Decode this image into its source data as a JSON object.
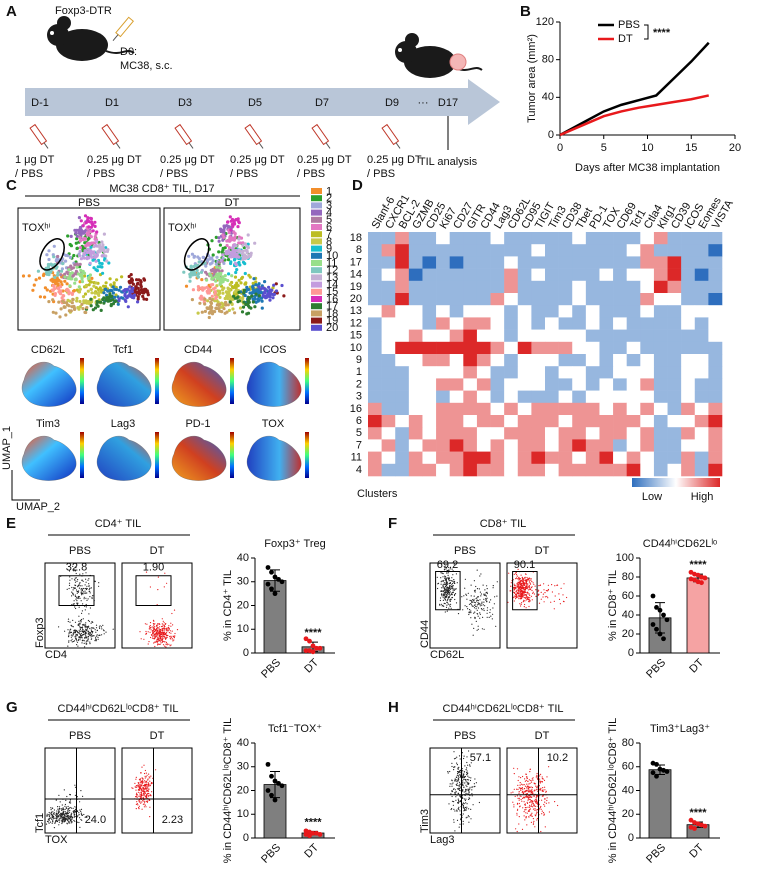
{
  "panel_labels": [
    "A",
    "B",
    "C",
    "D",
    "E",
    "F",
    "G",
    "H"
  ],
  "schedule": {
    "strain": "Foxp3-DTR",
    "d0": "D0:",
    "d0_detail": "MC38, s.c.",
    "days": [
      "D-1",
      "D1",
      "D3",
      "D5",
      "D7",
      "D9",
      "···",
      "D17"
    ],
    "doses": [
      {
        "amount": "1 μg DT",
        "control": "/ PBS"
      },
      {
        "amount": "0.25 μg DT",
        "control": "/ PBS"
      },
      {
        "amount": "0.25 μg DT",
        "control": "/ PBS"
      },
      {
        "amount": "0.25 μg DT",
        "control": "/ PBS"
      },
      {
        "amount": "0.25 μg DT",
        "control": "/ PBS"
      },
      {
        "amount": "0.25 μg DT",
        "control": "/ PBS"
      }
    ],
    "endpoint": "TIL analysis"
  },
  "umap": {
    "title": "MC38 CD8⁺ TIL, D17",
    "groups": [
      "PBS",
      "DT"
    ],
    "gate_label": "TOXʰⁱ",
    "clusters": [
      {
        "label": "1",
        "color": "#f28e2b"
      },
      {
        "label": "2",
        "color": "#2ca02c"
      },
      {
        "label": "3",
        "color": "#9fa8da"
      },
      {
        "label": "4",
        "color": "#9467bd"
      },
      {
        "label": "5",
        "color": "#b07aa1"
      },
      {
        "label": "6",
        "color": "#e377c2"
      },
      {
        "label": "7",
        "color": "#bcbd22"
      },
      {
        "label": "8",
        "color": "#c7c94a"
      },
      {
        "label": "9",
        "color": "#17becf"
      },
      {
        "label": "10",
        "color": "#1f77b4"
      },
      {
        "label": "11",
        "color": "#98df8a"
      },
      {
        "label": "12",
        "color": "#7fc8c0"
      },
      {
        "label": "13",
        "color": "#c5b0d5"
      },
      {
        "label": "14",
        "color": "#c49cde"
      },
      {
        "label": "15",
        "color": "#ff9896"
      },
      {
        "label": "16",
        "color": "#d62fb8"
      },
      {
        "label": "17",
        "color": "#2e7d32"
      },
      {
        "label": "18",
        "color": "#c8a064"
      },
      {
        "label": "19",
        "color": "#8b1a1a"
      },
      {
        "label": "20",
        "color": "#5a4fcf"
      }
    ],
    "markers": [
      "CD62L",
      "Tcf1",
      "CD44",
      "ICOS",
      "Tim3",
      "Lag3",
      "PD-1",
      "TOX"
    ],
    "axes": [
      "UMAP_1",
      "UMAP_2"
    ]
  },
  "flow": [
    {
      "title": "CD4⁺ TIL",
      "groups": [
        "PBS",
        "DT"
      ],
      "gates": [
        "32.8",
        "1.90"
      ],
      "y_axis": "Foxp3",
      "x_axis": "CD4"
    },
    {
      "title": "CD8⁺ TIL",
      "groups": [
        "PBS",
        "DT"
      ],
      "gates": [
        "69.2",
        "90.1"
      ],
      "y_axis": "CD44",
      "x_axis": "CD62L"
    },
    {
      "title": "CD44ʰⁱCD62LˡᵒCD8⁺ TIL",
      "groups": [
        "PBS",
        "DT"
      ],
      "gates": [
        "24.0",
        "2.23"
      ],
      "y_axis": "Tcf1",
      "x_axis": "TOX"
    },
    {
      "title": "CD44ʰⁱCD62LˡᵒCD8⁺ TIL",
      "groups": [
        "PBS",
        "DT"
      ],
      "gates": [
        "57.1",
        "10.2"
      ],
      "y_axis": "Tim3",
      "x_axis": "Lag3"
    }
  ],
  "chart_data": [
    {
      "type": "line",
      "xlabel": "Days after MC38 implantation",
      "ylabel": "Tumor area (mm²)",
      "x": [
        0,
        3,
        5,
        7,
        9,
        11,
        13,
        15,
        17
      ],
      "series": [
        {
          "name": "PBS",
          "color": "#000000",
          "values": [
            0,
            15,
            25,
            32,
            37,
            42,
            60,
            78,
            98
          ]
        },
        {
          "name": "DT",
          "color": "#e8191c",
          "values": [
            0,
            12,
            20,
            25,
            29,
            32,
            35,
            38,
            42
          ]
        }
      ],
      "xlim": [
        0,
        20
      ],
      "xticks": [
        0,
        5,
        10,
        15,
        20
      ],
      "ylim": [
        0,
        120
      ],
      "yticks": [
        0,
        40,
        80,
        120
      ],
      "significance": "****"
    },
    {
      "type": "heatmap",
      "ylabel": "Clusters",
      "low": "Low",
      "high": "High",
      "zlim": [
        -2,
        2
      ],
      "columns": [
        "Slanf-6",
        "CXCR1",
        "BCL-2",
        "GZMB",
        "CD25",
        "Ki67",
        "CD27",
        "GITR",
        "CD44",
        "Lag3",
        "CD62L",
        "CD95",
        "TIGIT",
        "Tim3",
        "CD38",
        "Tbet",
        "PD-1",
        "TOX",
        "CD69",
        "Tcf1",
        "Ctla4",
        "Klrg1",
        "CD39",
        "ICOS",
        "Eomes",
        "VISTA"
      ],
      "rows": [
        "18",
        "8",
        "17",
        "14",
        "19",
        "20",
        "13",
        "12",
        "15",
        "10",
        "9",
        "1",
        "2",
        "3",
        "16",
        "6",
        "5",
        "7",
        "11",
        "4"
      ],
      "values": [
        [
          -1,
          -1,
          1,
          -1,
          -1,
          0,
          -1,
          -1,
          -1,
          0,
          -1,
          -1,
          -1,
          -1,
          -1,
          0,
          -1,
          -1,
          -1,
          -1,
          0,
          1,
          -1,
          -1,
          -1,
          -1
        ],
        [
          -1,
          1,
          2,
          -1,
          -1,
          -1,
          -1,
          -1,
          -1,
          -1,
          -1,
          -1,
          0,
          -1,
          -1,
          -1,
          -1,
          -1,
          -1,
          0,
          1,
          -1,
          -1,
          -1,
          -1,
          -2
        ],
        [
          -1,
          -1,
          2,
          -1,
          -2,
          -1,
          -2,
          -1,
          -1,
          -1,
          0,
          -1,
          -1,
          -1,
          -1,
          -1,
          -1,
          -1,
          -1,
          -1,
          1,
          1,
          2,
          -1,
          -1,
          -1
        ],
        [
          -1,
          0,
          1,
          -2,
          -1,
          -1,
          -1,
          -1,
          -1,
          -1,
          1,
          -1,
          0,
          -1,
          -1,
          -1,
          -1,
          0,
          -1,
          0,
          0,
          1,
          2,
          -1,
          -2,
          -1
        ],
        [
          -1,
          -1,
          1,
          -1,
          -1,
          -1,
          -1,
          -1,
          -1,
          -1,
          1,
          -1,
          -1,
          -1,
          -1,
          0,
          -1,
          -1,
          -1,
          -1,
          0,
          2,
          1,
          -1,
          -1,
          -1
        ],
        [
          -1,
          -1,
          2,
          -1,
          -1,
          -1,
          -1,
          -1,
          -1,
          1,
          0,
          -1,
          -1,
          -1,
          -1,
          0,
          -1,
          -1,
          -1,
          -1,
          1,
          0,
          0,
          -1,
          -1,
          -2
        ],
        [
          0,
          1,
          0,
          0,
          -1,
          0,
          -1,
          0,
          0,
          0,
          -1,
          0,
          -1,
          -1,
          0,
          -1,
          0,
          -1,
          -1,
          -1,
          0,
          -1,
          -1,
          0,
          0,
          0
        ],
        [
          -1,
          0,
          0,
          0,
          -1,
          1,
          0,
          1,
          1,
          0,
          -1,
          0,
          -1,
          0,
          -1,
          -1,
          0,
          -1,
          0,
          -1,
          -1,
          -1,
          -1,
          0,
          -1,
          0
        ],
        [
          -1,
          0,
          0,
          1,
          0,
          0,
          1,
          2,
          0,
          0,
          -1,
          0,
          0,
          0,
          0,
          0,
          -1,
          -1,
          -1,
          -1,
          -1,
          -1,
          -1,
          -1,
          -1,
          0
        ],
        [
          -1,
          0,
          2,
          2,
          2,
          2,
          2,
          2,
          2,
          1,
          0,
          2,
          1,
          1,
          1,
          0,
          0,
          -1,
          -1,
          0,
          -1,
          -1,
          -1,
          -1,
          -1,
          -1
        ],
        [
          -1,
          -1,
          0,
          0,
          1,
          1,
          0,
          2,
          1,
          0,
          -1,
          0,
          0,
          0,
          -1,
          -1,
          0,
          -1,
          0,
          -1,
          0,
          -1,
          -1,
          0,
          0,
          -1
        ],
        [
          -1,
          -1,
          -1,
          0,
          0,
          0,
          0,
          1,
          0,
          -1,
          -1,
          0,
          0,
          -1,
          0,
          0,
          -1,
          -1,
          0,
          0,
          0,
          -1,
          -1,
          0,
          0,
          -1
        ],
        [
          -1,
          -1,
          -1,
          0,
          0,
          1,
          1,
          0,
          1,
          -1,
          0,
          0,
          0,
          -1,
          -1,
          0,
          -1,
          0,
          -1,
          0,
          1,
          -1,
          -1,
          0,
          -1,
          -1
        ],
        [
          -1,
          -1,
          -1,
          0,
          0,
          -1,
          0,
          1,
          0,
          -1,
          0,
          -1,
          -1,
          -1,
          0,
          -1,
          0,
          0,
          0,
          0,
          0,
          -1,
          -1,
          0,
          -1,
          -1
        ],
        [
          1,
          -1,
          -1,
          0,
          0,
          1,
          1,
          1,
          1,
          0,
          1,
          0,
          1,
          1,
          1,
          1,
          1,
          0,
          1,
          0,
          1,
          0,
          -1,
          1,
          0,
          1
        ],
        [
          2,
          1,
          0,
          1,
          0,
          1,
          1,
          0,
          1,
          1,
          0,
          1,
          1,
          1,
          0,
          1,
          1,
          1,
          1,
          1,
          0,
          -1,
          0,
          0,
          1,
          2
        ],
        [
          1,
          0,
          -1,
          1,
          0,
          1,
          1,
          1,
          0,
          0,
          1,
          1,
          1,
          0,
          1,
          1,
          0,
          1,
          1,
          0,
          1,
          -1,
          -1,
          1,
          0,
          1
        ],
        [
          0,
          1,
          -1,
          0,
          1,
          1,
          2,
          1,
          0,
          1,
          0,
          1,
          1,
          0,
          1,
          2,
          1,
          1,
          -1,
          0,
          1,
          -1,
          -1,
          0,
          0,
          1
        ],
        [
          1,
          0,
          -1,
          1,
          0,
          1,
          1,
          2,
          2,
          1,
          0,
          1,
          2,
          1,
          1,
          0,
          1,
          2,
          0,
          1,
          0,
          -1,
          -1,
          1,
          -1,
          1
        ],
        [
          1,
          -1,
          -1,
          1,
          1,
          0,
          1,
          2,
          1,
          1,
          0,
          1,
          1,
          0,
          1,
          1,
          1,
          1,
          1,
          2,
          0,
          -1,
          0,
          1,
          -1,
          2
        ]
      ]
    },
    {
      "type": "bar",
      "title": "Foxp3⁺ Treg",
      "ylabel": "% in CD4⁺ TIL",
      "categories": [
        "PBS",
        "DT"
      ],
      "values": [
        30.5,
        2.6
      ],
      "errors": [
        4.5,
        2
      ],
      "points": [
        [
          36,
          34,
          32,
          31,
          30,
          29,
          27,
          25
        ],
        [
          6,
          5,
          3,
          2,
          2,
          1,
          1,
          0.5
        ]
      ],
      "colors": [
        "#7f7f7f",
        "#7f7f7f"
      ],
      "point_colors": [
        "#000000",
        "#e8191c"
      ],
      "ylim": [
        0,
        40
      ],
      "yticks": [
        0,
        10,
        20,
        30,
        40
      ],
      "significance": "****"
    },
    {
      "type": "bar",
      "title": "CD44ʰⁱCD62Lˡᵒ",
      "ylabel": "% in CD8⁺ TIL",
      "categories": [
        "PBS",
        "DT"
      ],
      "values": [
        37,
        79
      ],
      "errors": [
        16,
        4
      ],
      "points": [
        [
          60,
          48,
          45,
          40,
          35,
          30,
          25,
          20,
          15
        ],
        [
          85,
          83,
          82,
          80,
          79,
          78,
          77,
          75,
          74
        ]
      ],
      "colors": [
        "#7f7f7f",
        "#f5a3a3"
      ],
      "point_colors": [
        "#000000",
        "#e8191c"
      ],
      "ylim": [
        0,
        100
      ],
      "yticks": [
        0,
        20,
        40,
        60,
        80,
        100
      ],
      "significance": "****"
    },
    {
      "type": "bar",
      "title": "Tcf1⁻TOX⁺",
      "ylabel": "% in CD44ʰⁱCD62LˡᵒCD8⁺ TIL",
      "categories": [
        "PBS",
        "DT"
      ],
      "values": [
        22.5,
        2.1
      ],
      "errors": [
        5.5,
        0.7
      ],
      "points": [
        [
          31,
          26,
          24,
          23,
          22,
          20,
          18,
          16
        ],
        [
          3,
          2.5,
          2,
          2,
          1.5,
          1.5,
          1
        ]
      ],
      "colors": [
        "#7f7f7f",
        "#7f7f7f"
      ],
      "point_colors": [
        "#000000",
        "#e8191c"
      ],
      "ylim": [
        0,
        40
      ],
      "yticks": [
        0,
        10,
        20,
        30,
        40
      ],
      "significance": "****"
    },
    {
      "type": "bar",
      "title": "Tim3⁺Lag3⁺",
      "ylabel": "% in CD44ʰⁱCD62LˡᵒCD8⁺ TIL",
      "categories": [
        "PBS",
        "DT"
      ],
      "values": [
        57.5,
        11.2
      ],
      "errors": [
        4,
        2.3
      ],
      "points": [
        [
          63,
          62,
          58,
          57,
          56,
          55,
          52
        ],
        [
          15,
          13,
          12,
          11,
          10,
          9,
          8
        ]
      ],
      "colors": [
        "#7f7f7f",
        "#7f7f7f"
      ],
      "point_colors": [
        "#000000",
        "#e8191c"
      ],
      "ylim": [
        0,
        80
      ],
      "yticks": [
        0,
        20,
        40,
        60,
        80
      ],
      "significance": "****"
    }
  ]
}
